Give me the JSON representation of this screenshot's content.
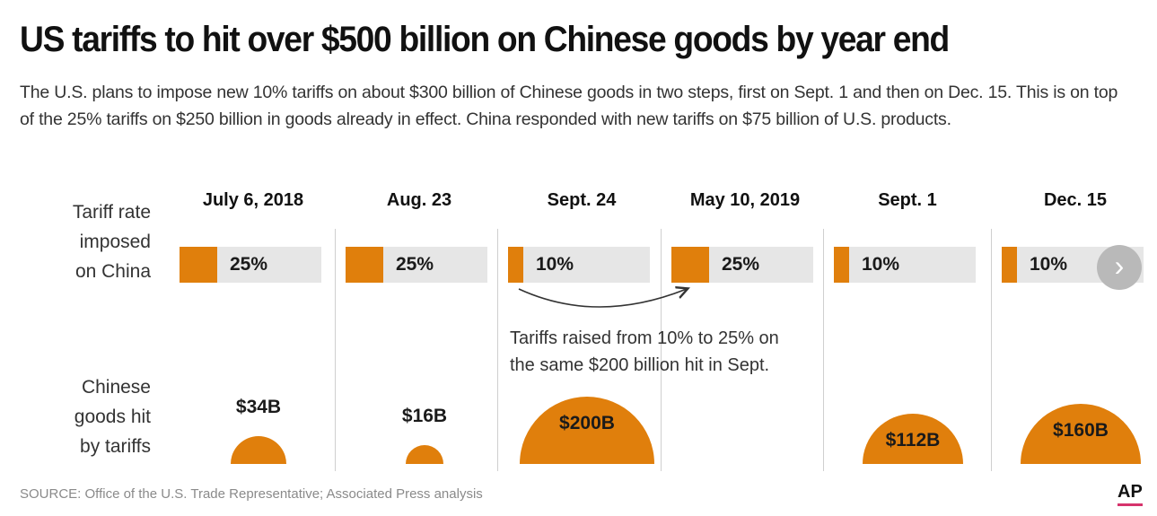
{
  "header": {
    "title": "US tariffs to hit over $500 billion on Chinese goods by year end",
    "description": "The U.S. plans to impose new 10% tariffs on about $300 billion of Chinese goods in two steps, first on Sept. 1 and then on Dec. 15. This is on top of the 25% tariffs on $250 billion in goods already in effect. China responded with new tariffs on $75 billion of U.S. products."
  },
  "row_labels": {
    "rate": [
      "Tariff rate",
      "imposed",
      "on China"
    ],
    "goods": [
      "Chinese",
      "goods hit",
      "by tariffs"
    ]
  },
  "annotation": {
    "line1": "Tariffs raised from 10% to 25% on",
    "line2": "the same $200 billion hit in Sept."
  },
  "footer": {
    "source": "SOURCE: Office of the U.S. Trade Representative; Associated Press analysis",
    "logo": "AP"
  },
  "colors": {
    "accent": "#e07f0c",
    "track": "#e6e6e6"
  },
  "icons": {
    "next": "chevron-right-icon"
  },
  "chart_data": {
    "type": "bar",
    "categories": [
      "July 6, 2018",
      "Aug. 23",
      "Sept. 24",
      "May 10, 2019",
      "Sept. 1",
      "Dec. 15"
    ],
    "series": [
      {
        "name": "Tariff rate imposed on China",
        "values": [
          25,
          25,
          10,
          25,
          10,
          10
        ],
        "labels": [
          "25%",
          "25%",
          "10%",
          "25%",
          "10%",
          "10%"
        ]
      },
      {
        "name": "Chinese goods hit by tariffs",
        "values": [
          34,
          16,
          200,
          null,
          112,
          160
        ],
        "labels": [
          "$34B",
          "$16B",
          "$200B",
          "",
          "$112B",
          "$160B"
        ]
      }
    ],
    "rate_max": 100
  }
}
